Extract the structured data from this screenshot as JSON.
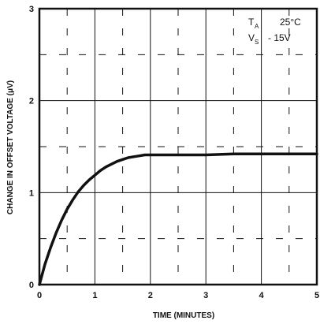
{
  "chart_data": {
    "type": "line",
    "xlabel": "TIME (MINUTES)",
    "ylabel": "CHANGE IN OFFSET VOLTAGE (μV)",
    "xlim": [
      0,
      5
    ],
    "ylim": [
      0,
      3
    ],
    "x_ticks": [
      "0",
      "1",
      "2",
      "3",
      "4",
      "5"
    ],
    "y_ticks": [
      "0",
      "1",
      "2",
      "3"
    ],
    "grid": true,
    "annotations": {
      "ta_symbol": "T",
      "ta_sub": "A",
      "ta_value": "25°C",
      "vs_symbol": "V",
      "vs_sub": "S",
      "vs_value": "- 15V"
    },
    "series": [
      {
        "x": [
          0,
          0.1,
          0.2,
          0.3,
          0.4,
          0.5,
          0.6,
          0.7,
          0.8,
          0.9,
          1.0,
          1.1,
          1.2,
          1.3,
          1.4,
          1.5,
          1.6,
          1.7,
          1.8,
          1.9,
          2.0,
          2.5,
          3.0,
          3.5,
          4.0,
          4.5,
          5.0
        ],
        "y": [
          0,
          0.22,
          0.4,
          0.56,
          0.7,
          0.82,
          0.92,
          1.01,
          1.08,
          1.14,
          1.19,
          1.24,
          1.28,
          1.31,
          1.34,
          1.36,
          1.38,
          1.39,
          1.4,
          1.41,
          1.41,
          1.41,
          1.41,
          1.42,
          1.42,
          1.42,
          1.42
        ]
      }
    ]
  }
}
